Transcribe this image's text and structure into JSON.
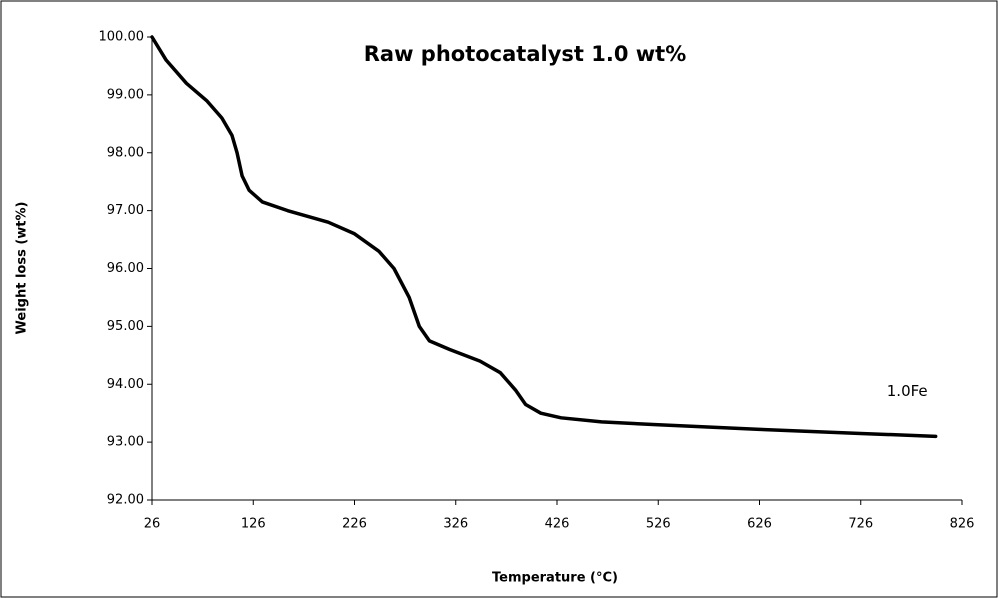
{
  "chart_data": {
    "type": "line",
    "title": "Raw photocatalyst 1.0 wt%",
    "xlabel": "Temperature (°C)",
    "ylabel": "Weight loss (wt%)",
    "x": [
      26,
      40,
      60,
      80,
      95,
      105,
      110,
      115,
      122,
      135,
      160,
      200,
      226,
      250,
      265,
      280,
      290,
      300,
      320,
      350,
      370,
      385,
      395,
      410,
      430,
      470,
      526,
      626,
      726,
      800
    ],
    "series": [
      {
        "name": "1.0Fe",
        "color": "#000000",
        "values": [
          100.0,
          99.6,
          99.2,
          98.9,
          98.6,
          98.3,
          98.0,
          97.6,
          97.35,
          97.15,
          97.0,
          96.8,
          96.6,
          96.3,
          96.0,
          95.5,
          95.0,
          94.75,
          94.6,
          94.4,
          94.2,
          93.9,
          93.65,
          93.5,
          93.42,
          93.35,
          93.3,
          93.22,
          93.15,
          93.1
        ]
      }
    ],
    "xlim": [
      26,
      826
    ],
    "xticks": [
      26,
      126,
      226,
      326,
      426,
      526,
      626,
      726,
      826
    ],
    "ylim": [
      92,
      100
    ],
    "yticks": [
      {
        "value": 92,
        "label": "92.00"
      },
      {
        "value": 93,
        "label": "93.00"
      },
      {
        "value": 94,
        "label": "94.00"
      },
      {
        "value": 95,
        "label": "95.00"
      },
      {
        "value": 96,
        "label": "96.00"
      },
      {
        "value": 97,
        "label": "97.00"
      },
      {
        "value": 98,
        "label": "98.00"
      },
      {
        "value": 99,
        "label": "99.00"
      },
      {
        "value": 100,
        "label": "100.00"
      }
    ],
    "grid": false
  }
}
